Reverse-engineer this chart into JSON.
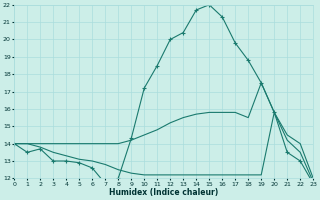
{
  "xlabel": "Humidex (Indice chaleur)",
  "background_color": "#cceee8",
  "grid_color": "#aadddd",
  "line_color": "#1a7a6e",
  "hours": [
    0,
    1,
    2,
    3,
    4,
    5,
    6,
    7,
    8,
    9,
    10,
    11,
    12,
    13,
    14,
    15,
    16,
    17,
    18,
    19,
    20,
    21,
    22,
    23
  ],
  "line_top": [
    14.0,
    13.5,
    13.7,
    13.0,
    13.0,
    12.9,
    12.6,
    11.7,
    12.0,
    14.3,
    17.2,
    18.5,
    20.0,
    20.4,
    21.7,
    22.0,
    21.3,
    19.8,
    18.8,
    17.5,
    15.8,
    13.5,
    13.0,
    11.7
  ],
  "line_mid": [
    14.0,
    14.0,
    14.0,
    14.0,
    14.0,
    14.0,
    14.0,
    14.0,
    14.0,
    14.2,
    14.5,
    14.8,
    15.2,
    15.5,
    15.7,
    15.8,
    15.8,
    15.8,
    15.5,
    17.5,
    15.8,
    14.5,
    14.0,
    12.0
  ],
  "line_bot": [
    14.0,
    14.0,
    13.8,
    13.5,
    13.3,
    13.1,
    13.0,
    12.8,
    12.5,
    12.3,
    12.2,
    12.2,
    12.2,
    12.2,
    12.2,
    12.2,
    12.2,
    12.2,
    12.2,
    12.2,
    15.8,
    14.2,
    13.5,
    11.8
  ],
  "ylim": [
    12,
    22
  ],
  "xlim": [
    0,
    23
  ],
  "yticks": [
    12,
    13,
    14,
    15,
    16,
    17,
    18,
    19,
    20,
    21,
    22
  ],
  "xticks": [
    0,
    1,
    2,
    3,
    4,
    5,
    6,
    7,
    8,
    9,
    10,
    11,
    12,
    13,
    14,
    15,
    16,
    17,
    18,
    19,
    20,
    21,
    22,
    23
  ]
}
